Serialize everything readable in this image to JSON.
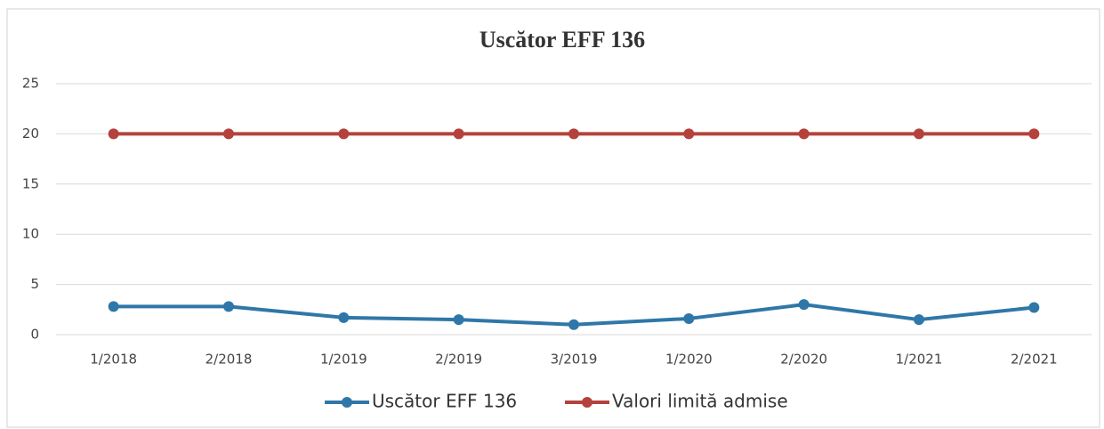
{
  "chart_data": {
    "type": "line",
    "title": "Uscător EFF 136",
    "categories": [
      "1/2018",
      "2/2018",
      "1/2019",
      "2/2019",
      "3/2019",
      "1/2020",
      "2/2020",
      "1/2021",
      "2/2021"
    ],
    "series": [
      {
        "name": "Uscător EFF 136",
        "color": "#2f77a8",
        "values": [
          2.8,
          2.8,
          1.7,
          1.5,
          1.0,
          1.6,
          3.0,
          1.5,
          2.7
        ]
      },
      {
        "name": "Valori limită admise",
        "color": "#b5413c",
        "values": [
          20,
          20,
          20,
          20,
          20,
          20,
          20,
          20,
          20
        ]
      }
    ],
    "ylim": [
      0,
      25
    ],
    "yticks": [
      0,
      5,
      10,
      15,
      20,
      25
    ],
    "grid": true,
    "legend": "bottom"
  }
}
